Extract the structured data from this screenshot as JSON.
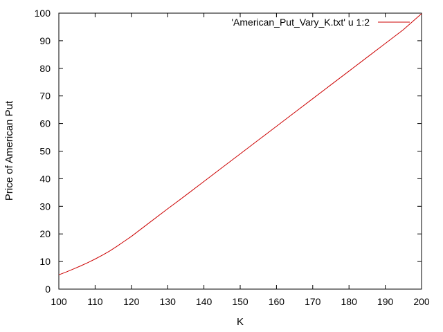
{
  "chart_data": {
    "type": "line",
    "title": "",
    "xlabel": "K",
    "ylabel": "Price of American Put",
    "xlim": [
      100,
      200
    ],
    "ylim": [
      0,
      100
    ],
    "x_ticks": [
      "100",
      "110",
      "120",
      "130",
      "140",
      "150",
      "160",
      "170",
      "180",
      "190",
      "200"
    ],
    "y_ticks": [
      "0",
      "10",
      "20",
      "30",
      "40",
      "50",
      "60",
      "70",
      "80",
      "90",
      "100"
    ],
    "grid": false,
    "legend_position": "top-right",
    "series": [
      {
        "name": "'American_Put_Vary_K.txt' u 1:2",
        "color": "#cc0000",
        "x": [
          100,
          102,
          104,
          106,
          108,
          110,
          112,
          114,
          116,
          118,
          120,
          125,
          130,
          135,
          140,
          145,
          150,
          155,
          160,
          165,
          170,
          175,
          180,
          185,
          190,
          195,
          200
        ],
        "y": [
          5.2,
          6.2,
          7.3,
          8.4,
          9.6,
          10.9,
          12.3,
          13.8,
          15.5,
          17.3,
          19.1,
          24.1,
          29.1,
          34.0,
          39.0,
          44.0,
          49.0,
          54.0,
          59.0,
          64.0,
          69.0,
          74.0,
          79.0,
          84.0,
          89.0,
          94.0,
          99.8
        ]
      }
    ]
  }
}
